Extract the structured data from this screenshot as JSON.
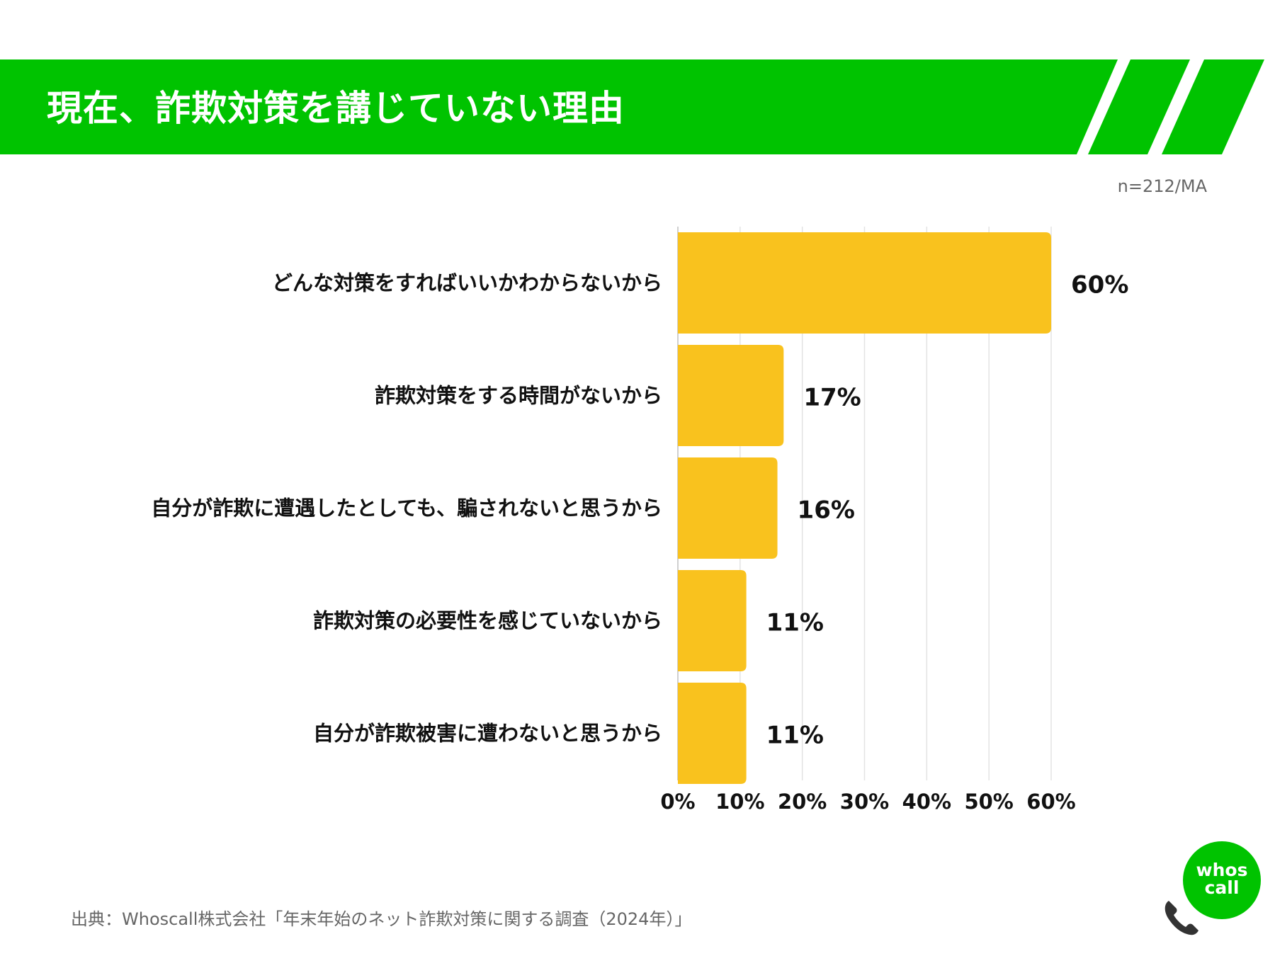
{
  "header": {
    "title": "現在、詐欺対策を講じていない理由",
    "accent_color": "#00c300"
  },
  "sample_note": "n=212/MA",
  "chart_data": {
    "type": "bar",
    "orientation": "horizontal",
    "categories": [
      "どんな対策をすればいいかわからないから",
      "詐欺対策をする時間がないから",
      "自分が詐欺に遭遇したとしても、騙されないと思うから",
      "詐欺対策の必要性を感じていないから",
      "自分が詐欺被害に遭わないと思うから"
    ],
    "values": [
      60,
      17,
      16,
      11,
      11
    ],
    "data_labels": [
      "60%",
      "17%",
      "16%",
      "11%",
      "11%"
    ],
    "x_ticks": [
      0,
      10,
      20,
      30,
      40,
      50,
      60
    ],
    "x_tick_labels": [
      "0%",
      "10%",
      "20%",
      "30%",
      "40%",
      "50%",
      "60%"
    ],
    "xlim": [
      0,
      60
    ],
    "grid": true,
    "bar_color": "#f9c21e",
    "unit": "%"
  },
  "source": "出典：Whoscall株式会社「年末年始のネット詐欺対策に関する調査（2024年）」",
  "logo": {
    "line1": "whos",
    "line2": "call",
    "icon": "phone-icon"
  }
}
